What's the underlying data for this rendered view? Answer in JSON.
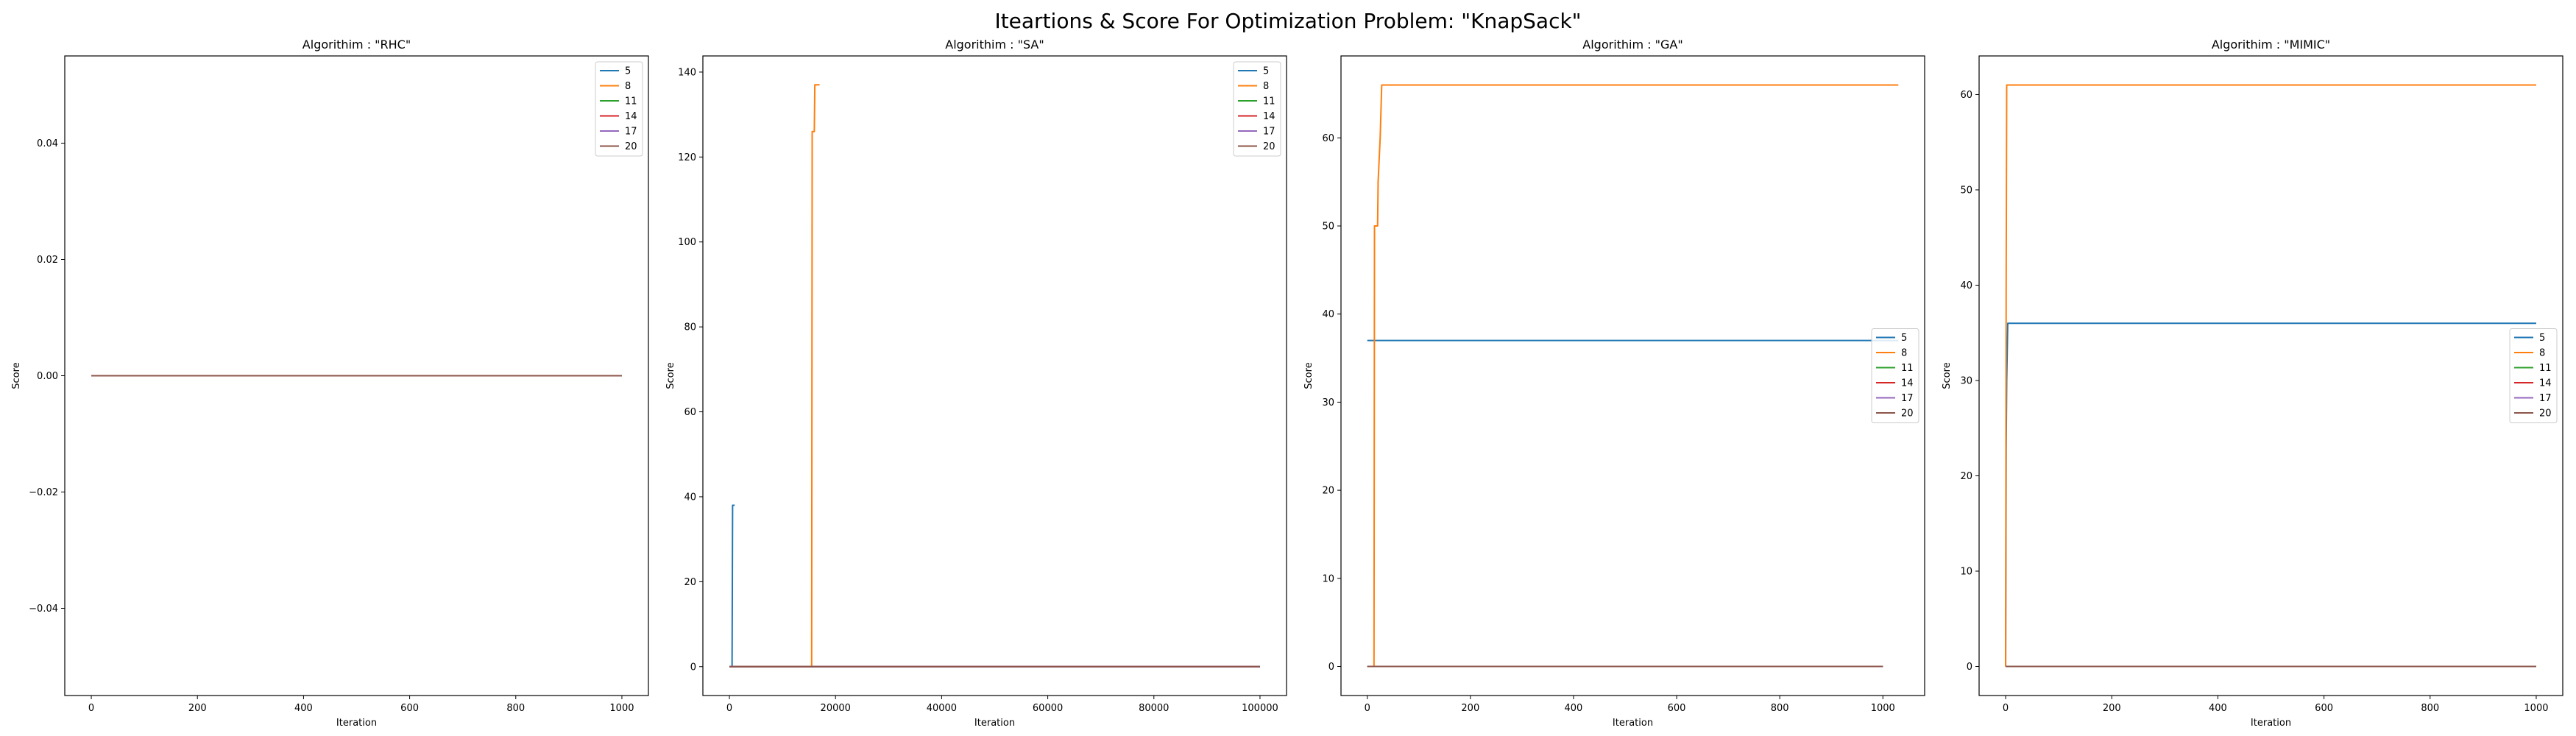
{
  "figure": {
    "title": "Iteartions & Score For Optimization Problem: \"KnapSack\""
  },
  "series_colors": [
    "#1f77b4",
    "#ff7f0e",
    "#2ca02c",
    "#d62728",
    "#9467bd",
    "#8c564b"
  ],
  "chart_data": [
    {
      "type": "line",
      "title": "Algorithim : \"RHC\"",
      "xlabel": "Iteration",
      "ylabel": "Score",
      "xlim": [
        -50,
        1050
      ],
      "ylim": [
        -0.055,
        0.055
      ],
      "xticks": [
        0,
        200,
        400,
        600,
        800,
        1000
      ],
      "xtick_labels": [
        "0",
        "200",
        "400",
        "600",
        "800",
        "1000"
      ],
      "yticks": [
        -0.04,
        -0.02,
        0.0,
        0.02,
        0.04
      ],
      "ytick_labels": [
        "−0.04",
        "−0.02",
        "0.00",
        "0.02",
        "0.04"
      ],
      "legend_position": "upper right",
      "series": [
        {
          "name": "5",
          "x": [
            0,
            1000
          ],
          "y": [
            0,
            0
          ]
        },
        {
          "name": "8",
          "x": [
            0,
            1000
          ],
          "y": [
            0,
            0
          ]
        },
        {
          "name": "11",
          "x": [
            0,
            1000
          ],
          "y": [
            0,
            0
          ]
        },
        {
          "name": "14",
          "x": [
            0,
            1000
          ],
          "y": [
            0,
            0
          ]
        },
        {
          "name": "17",
          "x": [
            0,
            1000
          ],
          "y": [
            0,
            0
          ]
        },
        {
          "name": "20",
          "x": [
            0,
            1000
          ],
          "y": [
            0,
            0
          ]
        }
      ]
    },
    {
      "type": "line",
      "title": "Algorithim : \"SA\"",
      "xlabel": "Iteration",
      "ylabel": "Score",
      "xlim": [
        -5000,
        105000
      ],
      "ylim": [
        -6.8,
        143.8
      ],
      "xticks": [
        0,
        20000,
        40000,
        60000,
        80000,
        100000
      ],
      "xtick_labels": [
        "0",
        "20000",
        "40000",
        "60000",
        "80000",
        "100000"
      ],
      "yticks": [
        0,
        20,
        40,
        60,
        80,
        100,
        120,
        140
      ],
      "ytick_labels": [
        "0",
        "20",
        "40",
        "60",
        "80",
        "100",
        "120",
        "140"
      ],
      "legend_position": "upper right",
      "series": [
        {
          "name": "5",
          "x": [
            0,
            500,
            600,
            1000
          ],
          "y": [
            0,
            0,
            38,
            38
          ]
        },
        {
          "name": "8",
          "x": [
            0,
            15500,
            15600,
            16000,
            16100,
            17000
          ],
          "y": [
            0,
            0,
            126,
            126,
            137,
            137
          ]
        },
        {
          "name": "11",
          "x": [
            0,
            100000
          ],
          "y": [
            0,
            0
          ]
        },
        {
          "name": "14",
          "x": [
            0,
            100000
          ],
          "y": [
            0,
            0
          ]
        },
        {
          "name": "17",
          "x": [
            0,
            100000
          ],
          "y": [
            0,
            0
          ]
        },
        {
          "name": "20",
          "x": [
            0,
            100000
          ],
          "y": [
            0,
            0
          ]
        }
      ]
    },
    {
      "type": "line",
      "title": "Algorithim : \"GA\"",
      "xlabel": "Iteration",
      "ylabel": "Score",
      "xlim": [
        -51,
        1081
      ],
      "ylim": [
        -3.3,
        69.3
      ],
      "xticks": [
        0,
        200,
        400,
        600,
        800,
        1000
      ],
      "xtick_labels": [
        "0",
        "200",
        "400",
        "600",
        "800",
        "1000"
      ],
      "yticks": [
        0,
        10,
        20,
        30,
        40,
        50,
        60
      ],
      "ytick_labels": [
        "0",
        "10",
        "20",
        "30",
        "40",
        "50",
        "60"
      ],
      "legend_position": "center right",
      "series": [
        {
          "name": "5",
          "x": [
            0,
            1030
          ],
          "y": [
            37,
            37
          ]
        },
        {
          "name": "8",
          "x": [
            0,
            13,
            14,
            20,
            21,
            25,
            28,
            1030
          ],
          "y": [
            0,
            0,
            50,
            50,
            55,
            60,
            66,
            66
          ]
        },
        {
          "name": "11",
          "x": [
            0,
            1000
          ],
          "y": [
            0,
            0
          ]
        },
        {
          "name": "14",
          "x": [
            0,
            1000
          ],
          "y": [
            0,
            0
          ]
        },
        {
          "name": "17",
          "x": [
            0,
            1000
          ],
          "y": [
            0,
            0
          ]
        },
        {
          "name": "20",
          "x": [
            0,
            1000
          ],
          "y": [
            0,
            0
          ]
        }
      ]
    },
    {
      "type": "line",
      "title": "Algorithim : \"MIMIC\"",
      "xlabel": "Iteration",
      "ylabel": "Score",
      "xlim": [
        -50,
        1050
      ],
      "ylim": [
        -3.05,
        64.05
      ],
      "xticks": [
        0,
        200,
        400,
        600,
        800,
        1000
      ],
      "xtick_labels": [
        "0",
        "200",
        "400",
        "600",
        "800",
        "1000"
      ],
      "yticks": [
        0,
        10,
        20,
        30,
        40,
        50,
        60
      ],
      "ytick_labels": [
        "0",
        "10",
        "20",
        "30",
        "40",
        "50",
        "60"
      ],
      "legend_position": "center right",
      "series": [
        {
          "name": "5",
          "x": [
            0,
            1,
            2,
            4,
            1000
          ],
          "y": [
            0,
            23,
            30,
            36,
            36
          ]
        },
        {
          "name": "8",
          "x": [
            0,
            1,
            2,
            1000
          ],
          "y": [
            0,
            40,
            61,
            61
          ]
        },
        {
          "name": "11",
          "x": [
            0,
            1000
          ],
          "y": [
            0,
            0
          ]
        },
        {
          "name": "14",
          "x": [
            0,
            1000
          ],
          "y": [
            0,
            0
          ]
        },
        {
          "name": "17",
          "x": [
            0,
            1000
          ],
          "y": [
            0,
            0
          ]
        },
        {
          "name": "20",
          "x": [
            0,
            1000
          ],
          "y": [
            0,
            0
          ]
        }
      ]
    }
  ]
}
